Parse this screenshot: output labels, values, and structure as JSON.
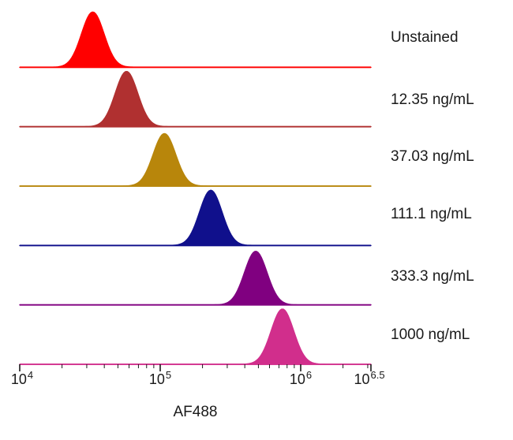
{
  "chart_data": {
    "type": "area",
    "variant": "flow-cytometry-stacked-histograms",
    "title": "",
    "xlabel": "AF488",
    "ylabel": "",
    "grid": false,
    "legend_position": "right",
    "x_scale": "log10",
    "x_domain_log10": [
      4,
      6.5
    ],
    "x_ticks": [
      {
        "base": "10",
        "exp": "4",
        "log10": 4
      },
      {
        "base": "10",
        "exp": "5",
        "log10": 5
      },
      {
        "base": "10",
        "exp": "6",
        "log10": 6
      },
      {
        "base": "10",
        "exp": "6.5",
        "log10": 6.5
      }
    ],
    "series": [
      {
        "name": "Unstained",
        "color": "#FF0000",
        "peak_value": 33000,
        "peak_log10": 4.52,
        "sigma_log10": 0.08,
        "height_rel": 1.0
      },
      {
        "name": "12.35 ng/mL",
        "color": "#B03030",
        "peak_value": 58000,
        "peak_log10": 4.76,
        "sigma_log10": 0.08,
        "height_rel": 1.0
      },
      {
        "name": "37.03 ng/mL",
        "color": "#B8860B",
        "peak_value": 107000,
        "peak_log10": 5.03,
        "sigma_log10": 0.08,
        "height_rel": 0.95
      },
      {
        "name": "111.1 ng/mL",
        "color": "#10108C",
        "peak_value": 230000,
        "peak_log10": 5.36,
        "sigma_log10": 0.08,
        "height_rel": 1.0
      },
      {
        "name": "333.3 ng/mL",
        "color": "#800080",
        "peak_value": 480000,
        "peak_log10": 5.68,
        "sigma_log10": 0.08,
        "height_rel": 0.97
      },
      {
        "name": "1000 ng/mL",
        "color": "#D12E8C",
        "peak_value": 740000,
        "peak_log10": 5.87,
        "sigma_log10": 0.08,
        "height_rel": 1.0
      }
    ]
  }
}
